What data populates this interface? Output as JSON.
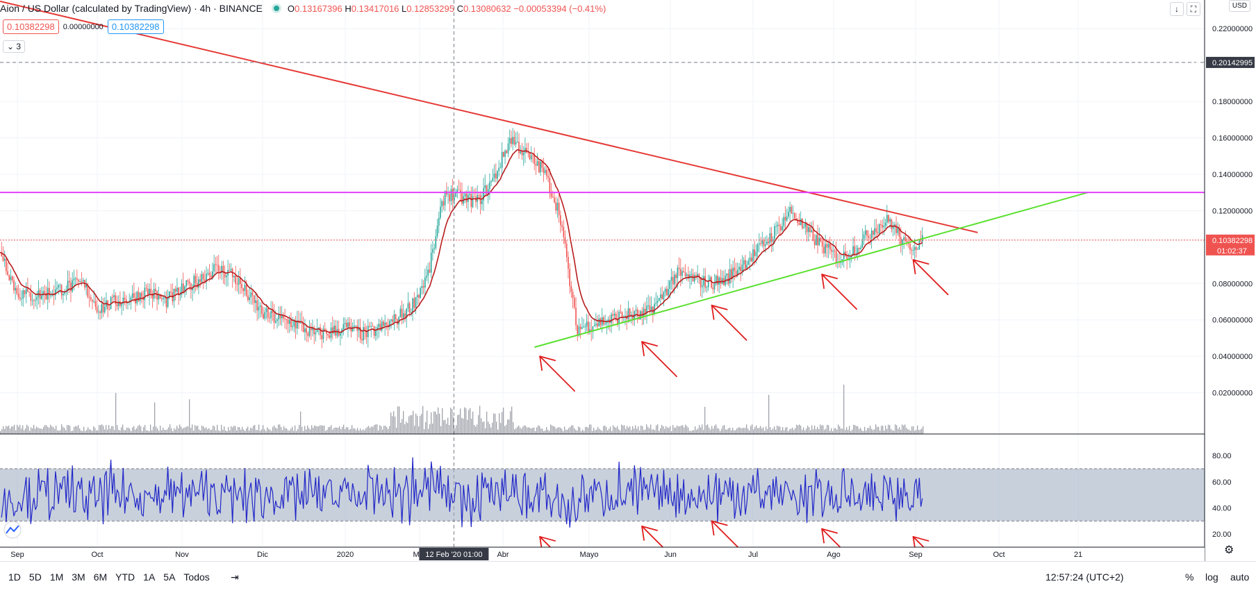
{
  "header": {
    "title": "Aion / US Dollar (calculated by TradingView) · 4h · BINANCE",
    "ohlc": {
      "o_label": "O",
      "o": "0.13167396",
      "h_label": "H",
      "h": "0.13417016",
      "l_label": "L",
      "l": "0.12853295",
      "c_label": "C",
      "c": "0.13080632",
      "change": "−0.00053394 (−0.41%)"
    },
    "badge_sell": "0.10382298",
    "badge_spread": "0.00000000",
    "badge_buy": "0.10382298",
    "indicators_toggle": "3",
    "currency": "USD"
  },
  "price_axis": {
    "ticks": [
      "0.22000000",
      "0.20142995",
      "0.18000000",
      "0.16000000",
      "0.14000000",
      "0.12000000",
      "0.10382298",
      "0.08000000",
      "0.06000000",
      "0.04000000",
      "0.02000000"
    ],
    "crosshair_label": "0.20142995",
    "last_price_label": "0.10382298",
    "countdown_label": "01:02:37"
  },
  "rsi_axis": {
    "ticks": [
      "80.00",
      "60.00",
      "40.00",
      "20.00"
    ]
  },
  "time_axis": {
    "labels": [
      "Sep",
      "Oct",
      "Nov",
      "Dic",
      "2020",
      "Mar",
      "Abr",
      "Mayo",
      "Jun",
      "Jul",
      "Ago",
      "Sep",
      "Oct",
      "21"
    ],
    "crosshair_label": "12 Feb '20   01:00"
  },
  "bottom_bar": {
    "periods": [
      "1D",
      "5D",
      "1M",
      "3M",
      "6M",
      "YTD",
      "1A",
      "5A",
      "Todos"
    ],
    "clock": "12:57:24 (UTC+2)",
    "percent": "%",
    "log": "log",
    "auto": "auto"
  },
  "colors": {
    "up": "#26a69a",
    "down": "#ef5350",
    "resistance": "#e53935",
    "support": "#5ae02f",
    "horizontal": "#e040fb",
    "rsi_line": "#2127c8",
    "rsi_band": "#9aa9bf",
    "arrow": "#e01b1b"
  },
  "chart_data": {
    "type": "candlestick",
    "timeframe": "4h",
    "exchange": "BINANCE",
    "price_range": [
      0.0,
      0.23
    ],
    "rsi_range": [
      10,
      95
    ],
    "months": [
      "Sep",
      "Oct",
      "Nov",
      "Dic",
      "2020",
      "Feb",
      "Mar",
      "Abr",
      "Mayo",
      "Jun",
      "Jul",
      "Ago"
    ],
    "close_path": [
      0.099,
      0.075,
      0.073,
      0.075,
      0.078,
      0.08,
      0.066,
      0.07,
      0.072,
      0.076,
      0.07,
      0.076,
      0.082,
      0.088,
      0.086,
      0.074,
      0.063,
      0.06,
      0.058,
      0.052,
      0.053,
      0.056,
      0.052,
      0.055,
      0.06,
      0.068,
      0.085,
      0.13,
      0.127,
      0.125,
      0.138,
      0.16,
      0.15,
      0.142,
      0.118,
      0.055,
      0.058,
      0.06,
      0.063,
      0.062,
      0.07,
      0.085,
      0.083,
      0.08,
      0.082,
      0.09,
      0.098,
      0.108,
      0.12,
      0.108,
      0.1,
      0.093,
      0.1,
      0.11,
      0.115,
      0.1,
      0.103
    ],
    "trendlines": [
      {
        "name": "resistance",
        "from": [
          "2019-08-27",
          0.235
        ],
        "to": [
          "2020-08-25",
          0.108
        ]
      },
      {
        "name": "support",
        "from": [
          "2020-03-13",
          0.045
        ],
        "to": [
          "2020-10-05",
          0.13
        ]
      },
      {
        "name": "horizontal",
        "value": 0.13
      },
      {
        "name": "last_price",
        "value": 0.10382298
      },
      {
        "name": "crosshair",
        "value": 0.20142995,
        "date": "2020-02-12"
      }
    ],
    "rsi": {
      "period": 14,
      "band": [
        30,
        70
      ]
    },
    "annotations": {
      "price_arrows": [
        [
          "2020-03-15",
          0.04
        ],
        [
          "2020-04-22",
          0.048
        ],
        [
          "2020-05-18",
          0.068
        ],
        [
          "2020-06-28",
          0.085
        ],
        [
          "2020-08-01",
          0.093
        ]
      ],
      "rsi_arrows": [
        [
          "2020-03-15",
          18
        ],
        [
          "2020-04-22",
          26
        ],
        [
          "2020-05-18",
          30
        ],
        [
          "2020-06-28",
          24
        ],
        [
          "2020-08-01",
          18
        ]
      ]
    }
  }
}
